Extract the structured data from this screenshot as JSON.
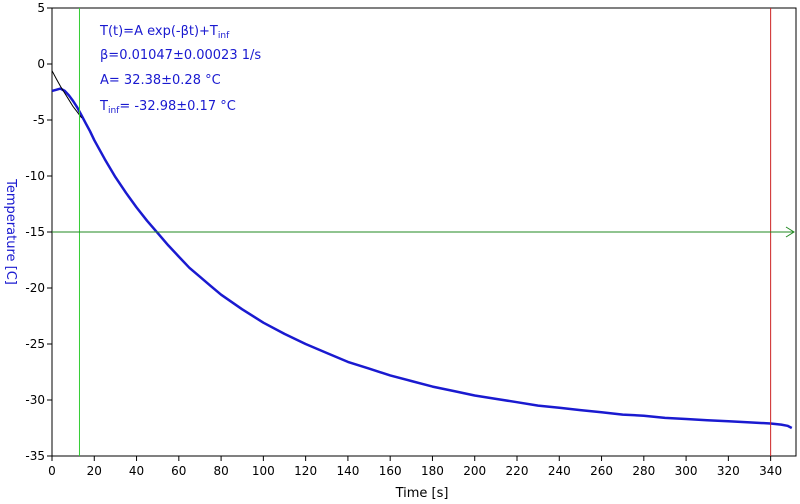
{
  "chart_data": {
    "type": "line",
    "title": "",
    "xlabel": "Time [s]",
    "ylabel": "Temperature [C]",
    "xlim": [
      0,
      352
    ],
    "ylim": [
      -35,
      5
    ],
    "xticks": [
      0,
      20,
      40,
      60,
      80,
      100,
      120,
      140,
      160,
      180,
      200,
      220,
      240,
      260,
      280,
      300,
      320,
      340
    ],
    "yticks": [
      5,
      0,
      -5,
      -10,
      -15,
      -20,
      -25,
      -30,
      -35
    ],
    "grid": false,
    "annotations": {
      "line1": {
        "main": "T(t)=A exp(-βt)+T",
        "sub": "inf",
        "tail": ""
      },
      "line2": "β=0.01047±0.00023 1/s",
      "line3": "A= 32.38±0.28 °C",
      "line4": {
        "main": "T",
        "sub": "inf",
        "tail": "= -32.98±0.17 °C"
      }
    },
    "cursors": {
      "vertical_green_x": 13,
      "vertical_red_x": 340,
      "horizontal_green_y": -15
    },
    "fit": {
      "A": 32.38,
      "beta": 0.01047,
      "T_inf": -32.98
    },
    "series": [
      {
        "name": "",
        "color": "#1a1ad0",
        "x": [
          0,
          2,
          4,
          6,
          8,
          10,
          12,
          14,
          16,
          18,
          20,
          25,
          30,
          35,
          40,
          45,
          50,
          55,
          60,
          65,
          70,
          75,
          80,
          90,
          100,
          110,
          120,
          130,
          140,
          150,
          160,
          170,
          180,
          190,
          200,
          210,
          220,
          230,
          240,
          250,
          260,
          270,
          280,
          290,
          300,
          310,
          320,
          330,
          340,
          345,
          348,
          350
        ],
        "y": [
          -2.4,
          -2.3,
          -2.2,
          -2.4,
          -2.8,
          -3.3,
          -3.9,
          -4.6,
          -5.3,
          -6.0,
          -6.8,
          -8.5,
          -10.1,
          -11.5,
          -12.8,
          -14.0,
          -15.1,
          -16.2,
          -17.2,
          -18.2,
          -19.0,
          -19.8,
          -20.6,
          -21.9,
          -23.1,
          -24.1,
          -25.0,
          -25.8,
          -26.6,
          -27.2,
          -27.8,
          -28.3,
          -28.8,
          -29.2,
          -29.6,
          -29.9,
          -30.2,
          -30.5,
          -30.7,
          -30.9,
          -31.1,
          -31.3,
          -31.4,
          -31.6,
          -31.7,
          -31.8,
          -31.9,
          -32.0,
          -32.1,
          -32.2,
          -32.3,
          -32.5
        ]
      },
      {
        "name": "",
        "color": "#000000",
        "x": [
          0,
          2,
          4,
          6,
          8,
          10,
          12,
          14
        ],
        "y": [
          -0.6,
          -1.3,
          -2.0,
          -2.6,
          -3.2,
          -3.8,
          -4.3,
          -4.8
        ]
      }
    ]
  }
}
